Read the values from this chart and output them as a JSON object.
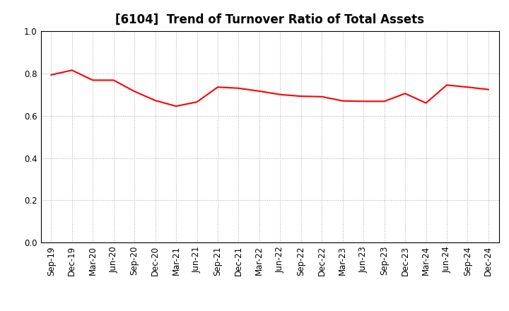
{
  "title": "[6104]  Trend of Turnover Ratio of Total Assets",
  "x_labels": [
    "Sep-19",
    "Dec-19",
    "Mar-20",
    "Jun-20",
    "Sep-20",
    "Dec-20",
    "Mar-21",
    "Jun-21",
    "Sep-21",
    "Dec-21",
    "Mar-22",
    "Jun-22",
    "Sep-22",
    "Dec-22",
    "Mar-23",
    "Jun-23",
    "Sep-23",
    "Dec-23",
    "Mar-24",
    "Jun-24",
    "Sep-24",
    "Dec-24"
  ],
  "y_values": [
    0.793,
    0.815,
    0.768,
    0.768,
    0.715,
    0.672,
    0.645,
    0.665,
    0.735,
    0.73,
    0.716,
    0.7,
    0.692,
    0.69,
    0.67,
    0.668,
    0.668,
    0.705,
    0.66,
    0.745,
    0.735,
    0.724
  ],
  "line_color": "#FF0000",
  "line_width": 1.5,
  "ylim": [
    0.0,
    1.0
  ],
  "yticks": [
    0.0,
    0.2,
    0.4,
    0.6,
    0.8,
    1.0
  ],
  "background_color": "#FFFFFF",
  "grid_color": "#AAAAAA",
  "title_fontsize": 12,
  "tick_fontsize": 8.5
}
